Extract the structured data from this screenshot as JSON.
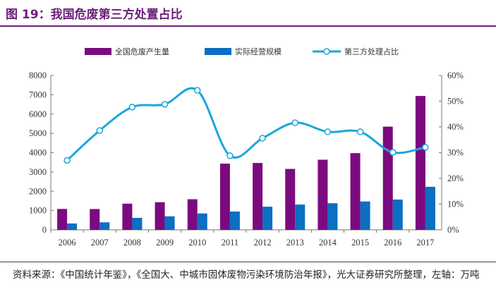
{
  "title": "图 19：我国危废第三方处置占比",
  "source": "资料来源：《中国统计年鉴》，《全国大、中城市固体废物污染环境防治年报》，光大证券研究所整理，左轴：万吨",
  "colors": {
    "production": "#7b0a7f",
    "operation": "#0b6fc2",
    "ratio": "#1aa6dc"
  },
  "chart_data": {
    "type": "bar",
    "categories": [
      "2006",
      "2007",
      "2008",
      "2009",
      "2010",
      "2011",
      "2012",
      "2013",
      "2014",
      "2015",
      "2016",
      "2017"
    ],
    "series": [
      {
        "name": "全国危废产生量",
        "type": "bar",
        "axis": "left",
        "values": [
          1084,
          1079,
          1357,
          1430,
          1587,
          3431,
          3465,
          3157,
          3634,
          3976,
          5347,
          6937
        ]
      },
      {
        "name": "实际经营规模",
        "type": "bar",
        "axis": "left",
        "values": [
          330,
          390,
          620,
          700,
          850,
          950,
          1200,
          1310,
          1380,
          1470,
          1570,
          2230
        ]
      },
      {
        "name": "第三方处理占比",
        "type": "line",
        "axis": "right",
        "values": [
          27.0,
          38.6,
          47.7,
          48.8,
          54.2,
          28.8,
          35.6,
          41.6,
          38.1,
          38.1,
          30.1,
          32.1
        ]
      }
    ],
    "ylim": [
      0,
      8000
    ],
    "y2lim": [
      0,
      60
    ],
    "yticks": [
      "0",
      "1000",
      "2000",
      "3000",
      "4000",
      "5000",
      "6000",
      "7000",
      "8000"
    ],
    "y2ticks": [
      "0%",
      "10%",
      "20%",
      "30%",
      "40%",
      "50%",
      "60%"
    ],
    "legend_position": "top"
  }
}
